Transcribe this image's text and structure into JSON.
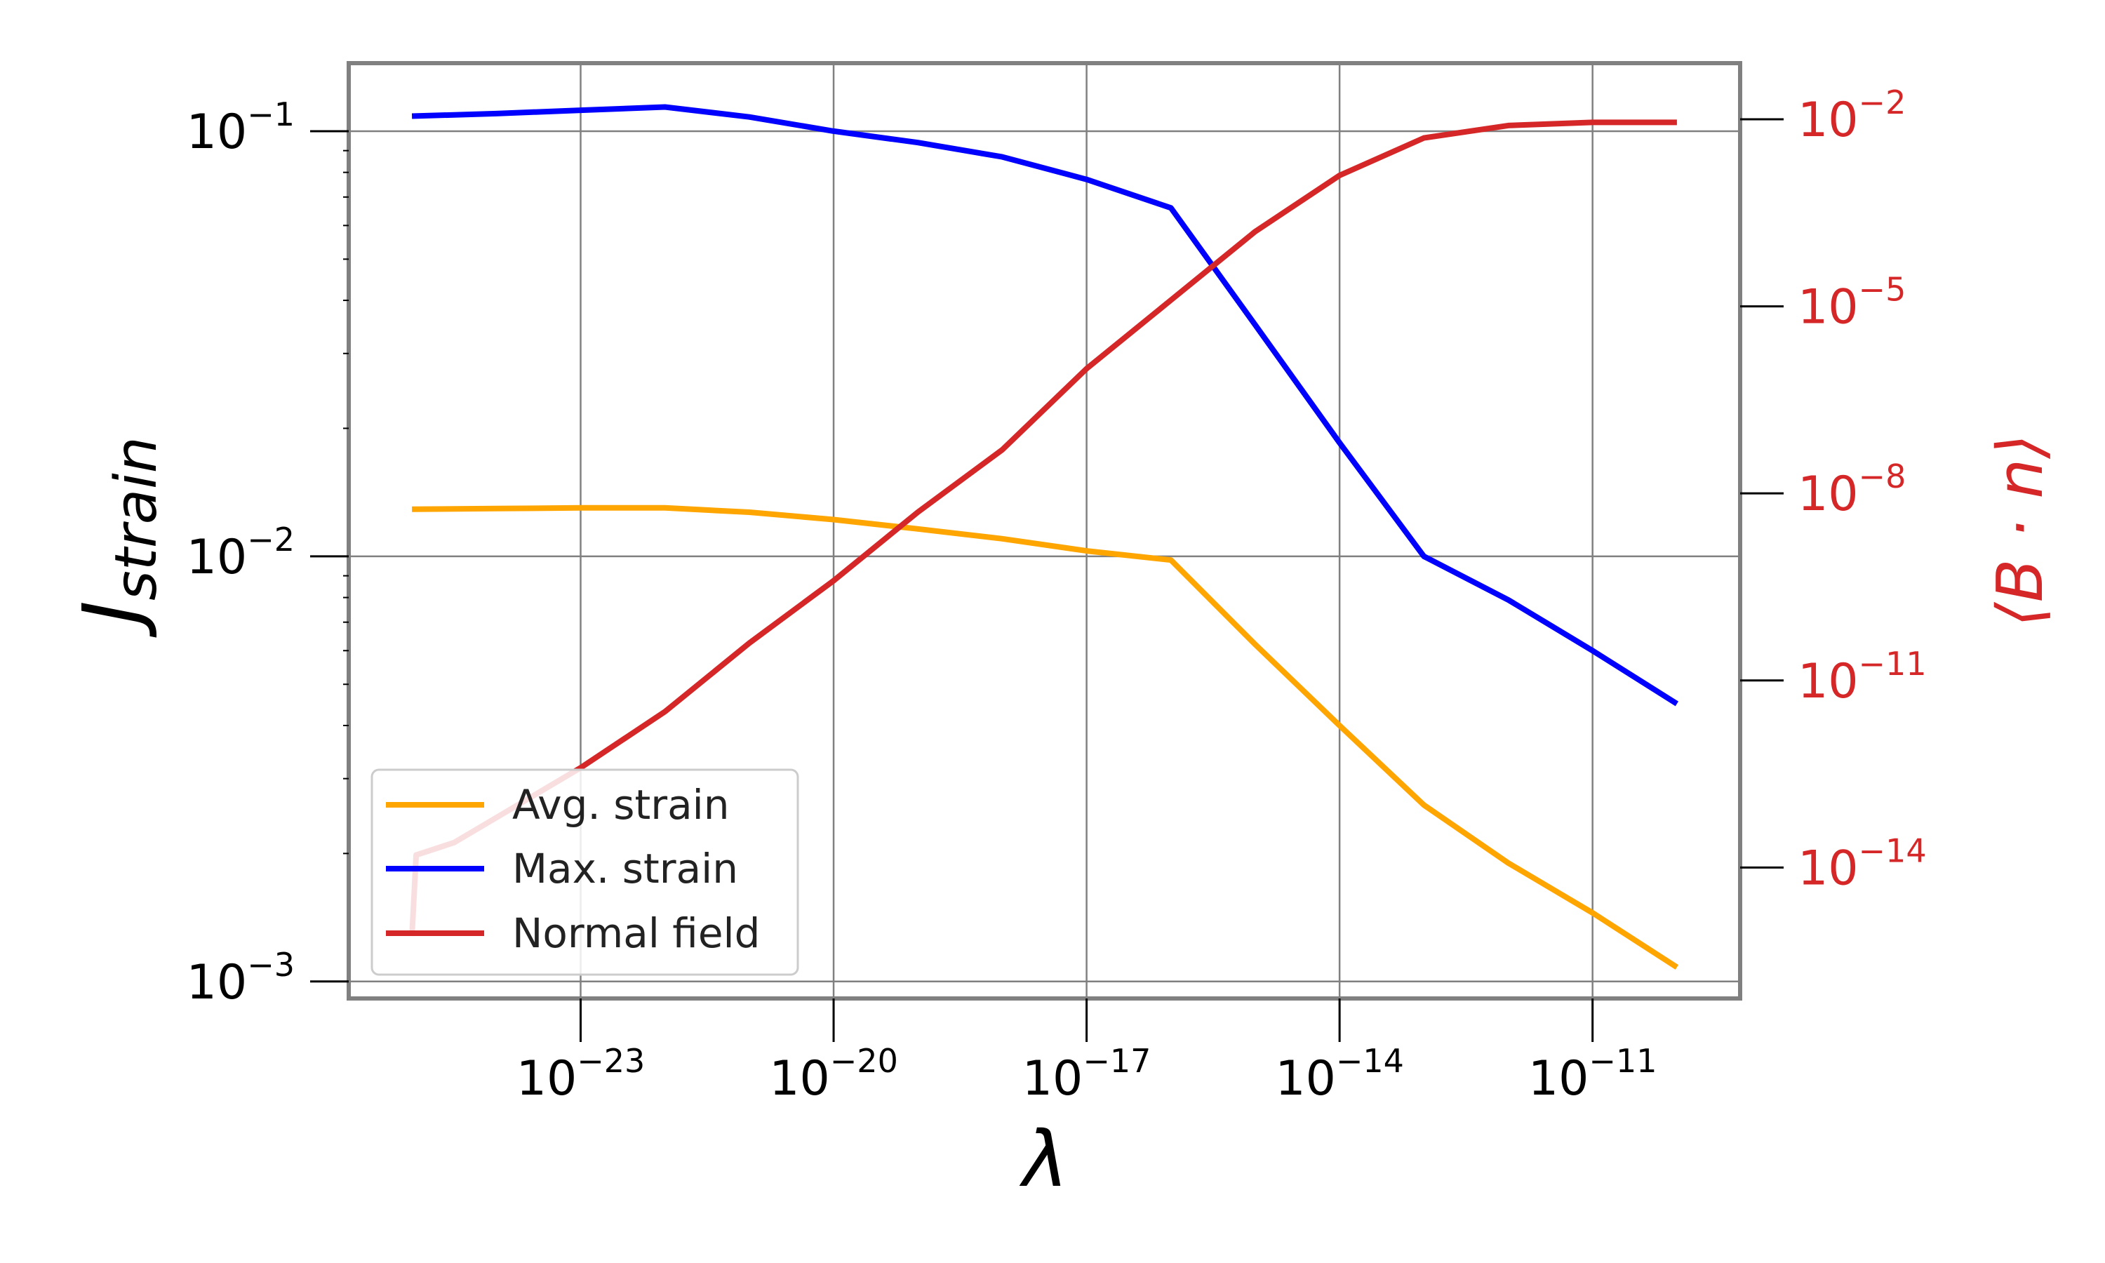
{
  "chart_data": {
    "type": "line",
    "title": "",
    "xlabel": "λ",
    "xscale": "log",
    "x_tick_labels": [
      {
        "exp": -23,
        "base": "10",
        "sup": "−23"
      },
      {
        "exp": -20,
        "base": "10",
        "sup": "−20"
      },
      {
        "exp": -17,
        "base": "10",
        "sup": "−17"
      },
      {
        "exp": -14,
        "base": "10",
        "sup": "−14"
      },
      {
        "exp": -11,
        "base": "10",
        "sup": "−11"
      }
    ],
    "xlim_log10": [
      -25.75,
      -9.25
    ],
    "left_axis": {
      "label_main": "J",
      "label_sub": "strain",
      "scale": "log",
      "ylim_log10": [
        -3.04,
        -0.84
      ],
      "tick_labels": [
        {
          "exp": -3,
          "base": "10",
          "sup": "−3"
        },
        {
          "exp": -2,
          "base": "10",
          "sup": "−2"
        },
        {
          "exp": -1,
          "base": "10",
          "sup": "−1"
        }
      ]
    },
    "right_axis": {
      "label": "⟨B · n⟩",
      "color": "#d62728",
      "scale": "log",
      "ylim_log10": [
        -16.1,
        -1.1
      ],
      "tick_labels": [
        {
          "exp": -14,
          "base": "10",
          "sup": "−14"
        },
        {
          "exp": -11,
          "base": "10",
          "sup": "−11"
        },
        {
          "exp": -8,
          "base": "10",
          "sup": "−8"
        },
        {
          "exp": -5,
          "base": "10",
          "sup": "−5"
        },
        {
          "exp": -2,
          "base": "10",
          "sup": "−2"
        }
      ]
    },
    "grid": true,
    "legend_position": "lower-left",
    "series": [
      {
        "name": "Avg. strain",
        "color": "#ffa500",
        "axis": "left",
        "x_log10": [
          -25,
          -24,
          -23,
          -22,
          -21,
          -20,
          -19,
          -18,
          -17,
          -16,
          -15,
          -14,
          -13,
          -12,
          -11,
          -10
        ],
        "y": [
          0.0129,
          0.01295,
          0.013,
          0.013,
          0.0127,
          0.0122,
          0.0116,
          0.011,
          0.0103,
          0.0098,
          0.0062,
          0.004,
          0.0026,
          0.0019,
          0.00145,
          0.00108
        ]
      },
      {
        "name": "Max. strain",
        "color": "#0000ff",
        "axis": "left",
        "x_log10": [
          -25,
          -24,
          -23,
          -22,
          -21,
          -20,
          -19,
          -18,
          -17,
          -16,
          -15,
          -14,
          -13,
          -12,
          -11,
          -10
        ],
        "y": [
          0.1085,
          0.11,
          0.112,
          0.114,
          0.108,
          0.1,
          0.094,
          0.087,
          0.077,
          0.066,
          0.035,
          0.0185,
          0.01,
          0.0079,
          0.006,
          0.0045
        ]
      },
      {
        "name": "Normal field",
        "color": "#d62728",
        "axis": "right",
        "x_log10": [
          -25,
          -24.95,
          -24.5,
          -24,
          -23,
          -22,
          -21,
          -20,
          -19,
          -18,
          -17,
          -16,
          -15,
          -14,
          -13,
          -12,
          -11,
          -10
        ],
        "y_log10": [
          -15.1,
          -13.8,
          -13.6,
          -13.2,
          -12.4,
          -11.5,
          -10.4,
          -9.4,
          -8.3,
          -7.3,
          -6.0,
          -4.9,
          -3.8,
          -2.9,
          -2.3,
          -2.1,
          -2.05,
          -2.05
        ]
      }
    ]
  }
}
